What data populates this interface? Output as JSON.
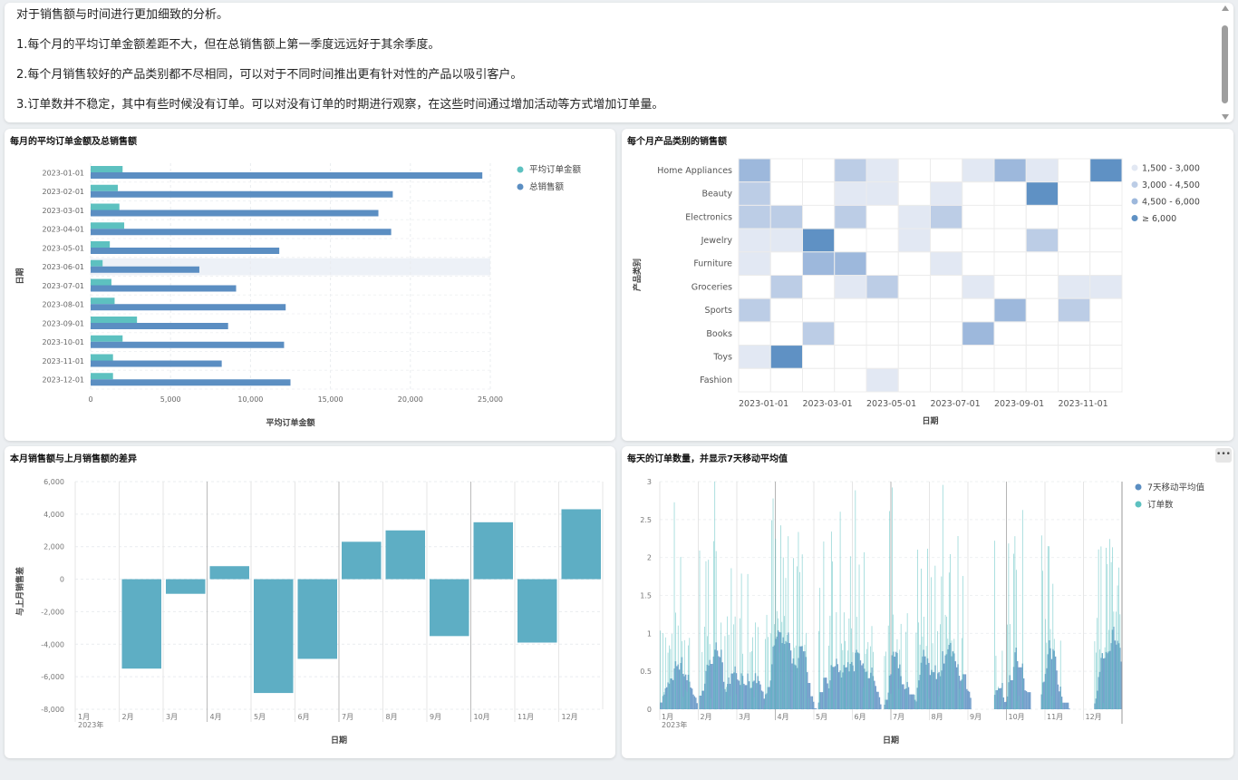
{
  "analysis": {
    "lines": [
      "对于销售额与时间进行更加细致的分析。",
      "1.每个月的平均订单金额差距不大，但在总销售额上第一季度远远好于其余季度。",
      "2.每个月销售较好的产品类别都不尽相同，可以对于不同时间推出更有针对性的产品以吸引客户。",
      "3.订单数并不稳定，其中有些时候没有订单。可以对没有订单的时期进行观察，在这些时间通过增加活动等方式增加订单量。"
    ]
  },
  "colors": {
    "teal": "#5dc1c0",
    "steelblue": "#5b8ec2",
    "bar_diff": "#5eaec4",
    "heat": [
      "#ffffff",
      "#e2e8f3",
      "#bccde6",
      "#9db8dc",
      "#5f91c4"
    ]
  },
  "chart1": {
    "title": "每月的平均订单金额及总销售额"
  },
  "chart2": {
    "title": "每个月产品类别的销售额"
  },
  "chart3": {
    "title": "本月销售额与上月销售额的差异"
  },
  "chart4": {
    "title": "每天的订单数量，并显示7天移动平均值",
    "more_icon": "ellipsis-icon"
  },
  "chart_data": [
    {
      "type": "bar",
      "orientation": "horizontal",
      "title": "每月的平均订单金额及总销售额",
      "xlabel": "平均订单金额",
      "ylabel": "日期",
      "categories": [
        "2023-01-01",
        "2023-02-01",
        "2023-03-01",
        "2023-04-01",
        "2023-05-01",
        "2023-06-01",
        "2023-07-01",
        "2023-08-01",
        "2023-09-01",
        "2023-10-01",
        "2023-11-01",
        "2023-12-01"
      ],
      "series": [
        {
          "name": "平均订单金额",
          "values": [
            2000,
            1700,
            1800,
            2100,
            1200,
            750,
            1300,
            1500,
            2900,
            2000,
            1400,
            1400
          ]
        },
        {
          "name": "总销售额",
          "values": [
            24500,
            18900,
            18000,
            18800,
            11800,
            6800,
            9100,
            12200,
            8600,
            12100,
            8200,
            12500
          ]
        }
      ],
      "xlim": [
        0,
        25000
      ],
      "xticks": [
        "0",
        "5,000",
        "10,000",
        "15,000",
        "20,000",
        "25,000"
      ],
      "grid": true,
      "legend": "top-right",
      "highlighted_category": "2023-06-01"
    },
    {
      "type": "heatmap",
      "title": "每个月产品类别的销售额",
      "xlabel": "日期",
      "ylabel": "产品类别",
      "x": [
        "2023-01-01",
        "2023-02-01",
        "2023-03-01",
        "2023-04-01",
        "2023-05-01",
        "2023-06-01",
        "2023-07-01",
        "2023-08-01",
        "2023-09-01",
        "2023-10-01",
        "2023-11-01",
        "2023-12-01"
      ],
      "xticks": [
        "2023-01-01",
        "2023-03-01",
        "2023-05-01",
        "2023-07-01",
        "2023-09-01",
        "2023-11-01"
      ],
      "y": [
        "Home Appliances",
        "Beauty",
        "Electronics",
        "Jewelry",
        "Furniture",
        "Groceries",
        "Sports",
        "Books",
        "Toys",
        "Fashion"
      ],
      "levels": [
        [
          3,
          0,
          0,
          2,
          1,
          0,
          0,
          1,
          3,
          1,
          0,
          4
        ],
        [
          2,
          0,
          0,
          1,
          1,
          0,
          1,
          0,
          0,
          4,
          0,
          0
        ],
        [
          2,
          2,
          0,
          2,
          0,
          1,
          2,
          0,
          0,
          0,
          0,
          0
        ],
        [
          1,
          1,
          4,
          0,
          0,
          1,
          0,
          0,
          0,
          2,
          0,
          0
        ],
        [
          1,
          0,
          3,
          3,
          0,
          0,
          1,
          0,
          0,
          0,
          0,
          0
        ],
        [
          0,
          2,
          0,
          1,
          2,
          0,
          0,
          1,
          0,
          0,
          1,
          1
        ],
        [
          2,
          0,
          0,
          0,
          0,
          0,
          0,
          0,
          3,
          0,
          2,
          0
        ],
        [
          0,
          0,
          2,
          0,
          0,
          0,
          0,
          3,
          0,
          0,
          0,
          0
        ],
        [
          1,
          4,
          0,
          0,
          0,
          0,
          0,
          0,
          0,
          0,
          0,
          0
        ],
        [
          0,
          0,
          0,
          0,
          1,
          0,
          0,
          0,
          0,
          0,
          0,
          0
        ]
      ],
      "legend": [
        "1,500 - 3,000",
        "3,000 - 4,500",
        "4,500 - 6,000",
        "≥ 6,000"
      ],
      "legend_position": "top-right"
    },
    {
      "type": "bar",
      "title": "本月销售额与上月销售额的差异",
      "xlabel": "日期",
      "ylabel": "与上月销售差",
      "categories": [
        "1月",
        "2月",
        "3月",
        "4月",
        "5月",
        "6月",
        "7月",
        "8月",
        "9月",
        "10月",
        "11月",
        "12月"
      ],
      "year_label": "2023年",
      "values": [
        null,
        -5500,
        -900,
        800,
        -7000,
        -4900,
        2300,
        3000,
        -3500,
        3500,
        -3900,
        4300
      ],
      "ylim": [
        -8000,
        6000
      ],
      "yticks": [
        "6,000",
        "4,000",
        "2,000",
        "0",
        "-2,000",
        "-4,000",
        "-6,000",
        "-8,000"
      ],
      "grid": true
    },
    {
      "type": "bar",
      "title": "每天的订单数量，并显示7天移动平均值",
      "xlabel": "日期",
      "x_tick_labels": [
        "1月",
        "2月",
        "3月",
        "4月",
        "5月",
        "6月",
        "7月",
        "8月",
        "9月",
        "10月",
        "11月",
        "12月"
      ],
      "year_label": "2023年",
      "ylim": [
        0,
        3
      ],
      "yticks": [
        "3",
        "2.5",
        "2",
        "1.5",
        "1",
        "0.5",
        "0"
      ],
      "legend": "top-right",
      "series": [
        {
          "name": "7天移动平均值",
          "note": "daily moving average, mostly between 0.2 and 0.9"
        },
        {
          "name": "订单数",
          "note": "daily order counts between 0 and 3"
        }
      ]
    }
  ]
}
